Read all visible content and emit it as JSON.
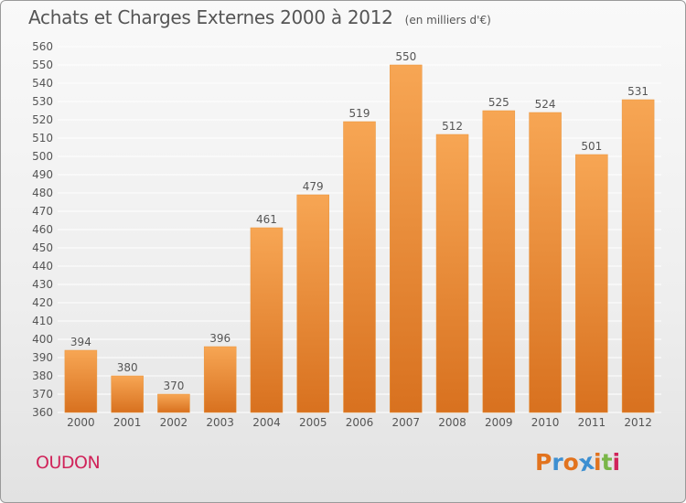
{
  "header": {
    "title": "Achats et Charges Externes 2000 à 2012",
    "subtitle": "(en milliers d'€)"
  },
  "footer": {
    "town": "OUDON",
    "logo_text": "Proxiti"
  },
  "colors": {
    "bar_top": "#f7a654",
    "bar_bottom": "#d8711f",
    "grid": "#ffffff",
    "axis_text": "#555555",
    "town": "#d0245a",
    "logo_letters": [
      "#e2731e",
      "#3d8fd1",
      "#e2731e",
      "#3d8fd1",
      "#e2731e",
      "#7ab648",
      "#d0245a"
    ]
  },
  "chart_data": {
    "type": "bar",
    "title": "Achats et Charges Externes 2000 à 2012",
    "subtitle": "(en milliers d'€)",
    "categories": [
      "2000",
      "2001",
      "2002",
      "2003",
      "2004",
      "2005",
      "2006",
      "2007",
      "2008",
      "2009",
      "2010",
      "2011",
      "2012"
    ],
    "values": [
      394,
      380,
      370,
      396,
      461,
      479,
      519,
      550,
      512,
      525,
      524,
      501,
      531
    ],
    "ylim": [
      360,
      560
    ],
    "ytick_step": 10,
    "grid": true,
    "legend": "none"
  }
}
